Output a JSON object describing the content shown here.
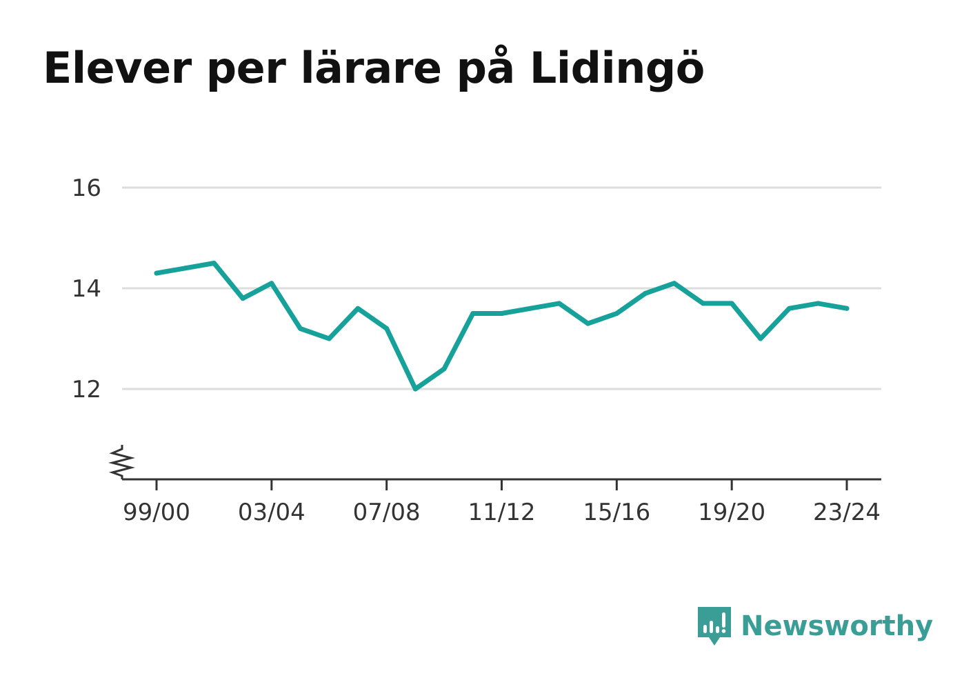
{
  "title": "Elever per lärare på Lidingö",
  "brand": {
    "name": "Newsworthy",
    "icon": "newsworthy-logo-icon",
    "color": "#3a9e96"
  },
  "colors": {
    "line": "#16a19a",
    "grid": "#dddddd",
    "axis": "#333333"
  },
  "chart_data": {
    "type": "line",
    "title": "Elever per lärare på Lidingö",
    "xlabel": "",
    "ylabel": "",
    "x": [
      "99/00",
      "00/01",
      "01/02",
      "02/03",
      "03/04",
      "04/05",
      "05/06",
      "06/07",
      "07/08",
      "08/09",
      "09/10",
      "10/11",
      "11/12",
      "12/13",
      "13/14",
      "14/15",
      "15/16",
      "16/17",
      "17/18",
      "18/19",
      "19/20",
      "20/21",
      "21/22",
      "22/23",
      "23/24"
    ],
    "x_ticks": [
      "99/00",
      "03/04",
      "07/08",
      "11/12",
      "15/16",
      "19/20",
      "23/24"
    ],
    "series": [
      {
        "name": "",
        "values": [
          14.3,
          14.4,
          14.5,
          13.8,
          14.1,
          13.2,
          13.0,
          13.6,
          13.2,
          12.0,
          12.4,
          13.5,
          13.5,
          13.6,
          13.7,
          13.3,
          13.5,
          13.9,
          14.1,
          13.7,
          13.7,
          13.0,
          13.6,
          13.7,
          13.6
        ]
      }
    ],
    "y_ticks": [
      12,
      14,
      16
    ],
    "ylim": [
      10.2,
      16.0
    ],
    "grid": true,
    "axis_break": true
  }
}
